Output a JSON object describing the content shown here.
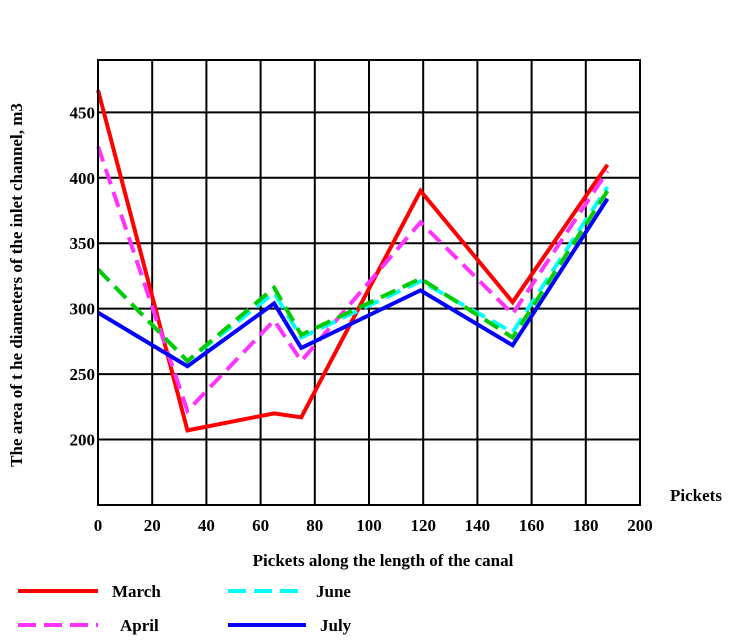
{
  "chart_data": {
    "type": "line",
    "title": "",
    "xlabel": "Pickets along the length of the canal",
    "x_axis_end_label": "Pickets",
    "ylabel": "The area of t    he diameters of the inlet channel, m3",
    "xlim": [
      0,
      200
    ],
    "ylim": [
      150,
      490
    ],
    "x_ticks": [
      "0",
      "20",
      "40",
      "60",
      "80",
      "100",
      "120",
      "140",
      "160",
      "180",
      "200"
    ],
    "y_ticks": [
      "200",
      "250",
      "300",
      "350",
      "400",
      "450"
    ],
    "grid": true,
    "legend_position": "bottom",
    "series": [
      {
        "name": "March",
        "color": "#ff0000",
        "dash": "solid",
        "x": [
          0,
          33,
          65,
          75,
          119,
          153,
          188
        ],
        "y": [
          467,
          207,
          220,
          217,
          390,
          305,
          410
        ]
      },
      {
        "name": "April",
        "color": "#ff33ff",
        "dash": "dashed",
        "x": [
          0,
          33,
          65,
          75,
          119,
          153,
          188
        ],
        "y": [
          424,
          222,
          291,
          260,
          366,
          296,
          405
        ]
      },
      {
        "name": "June",
        "color": "#00ffff",
        "dash": "dashed",
        "x": [
          0,
          33,
          65,
          75,
          119,
          153,
          188
        ],
        "y": [
          330,
          260,
          312,
          278,
          321,
          282,
          393
        ]
      },
      {
        "name": "",
        "color": "#00cc00",
        "dash": "dashed",
        "x": [
          0,
          33,
          65,
          75,
          119,
          153,
          188
        ],
        "y": [
          330,
          260,
          316,
          280,
          323,
          278,
          390
        ]
      },
      {
        "name": "July",
        "color": "#0000ff",
        "dash": "solid",
        "x": [
          0,
          33,
          65,
          75,
          119,
          153,
          188
        ],
        "y": [
          297,
          256,
          304,
          270,
          314,
          272,
          384
        ]
      }
    ],
    "legend": [
      {
        "label": "March",
        "color": "#ff0000",
        "dash": "solid"
      },
      {
        "label": "June",
        "color": "#00ffff",
        "dash": "dashed"
      },
      {
        "label": "April",
        "color": "#ff33ff",
        "dash": "dashed"
      },
      {
        "label": "July",
        "color": "#0000ff",
        "dash": "solid"
      }
    ]
  }
}
